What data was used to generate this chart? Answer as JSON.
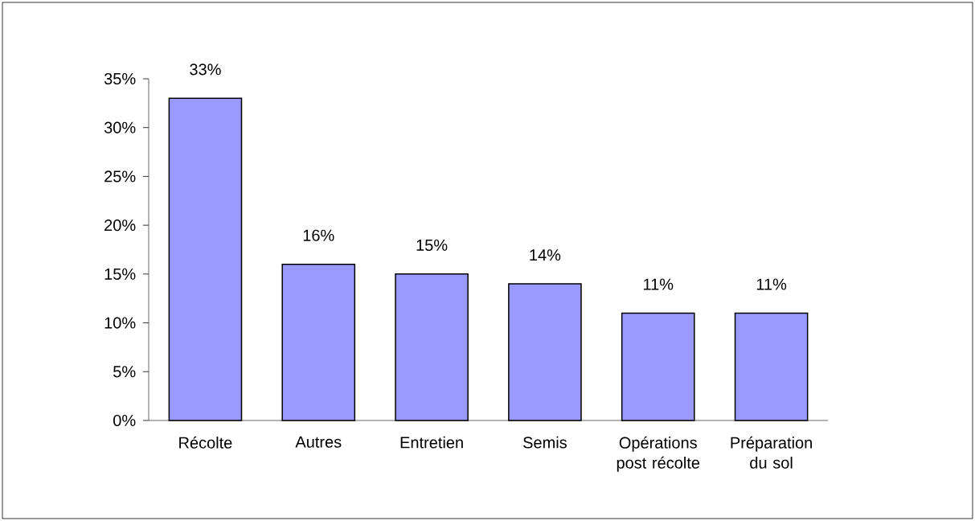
{
  "chart_data": {
    "type": "bar",
    "categories": [
      "Récolte",
      "Autres",
      "Entretien",
      "Semis",
      "Opérations post récolte",
      "Préparation du sol"
    ],
    "values": [
      33,
      16,
      15,
      14,
      11,
      11
    ],
    "color": "#9999ff",
    "value_labels": [
      "33%",
      "16%",
      "15%",
      "14%",
      "11%",
      "11%"
    ],
    "ylim": [
      0,
      35
    ],
    "yticks": [
      {
        "value": 0,
        "label": "0%"
      },
      {
        "value": 5,
        "label": "5%"
      },
      {
        "value": 10,
        "label": "10%"
      },
      {
        "value": 15,
        "label": "15%"
      },
      {
        "value": 20,
        "label": "20%"
      },
      {
        "value": 25,
        "label": "25%"
      },
      {
        "value": 30,
        "label": "30%"
      },
      {
        "value": 35,
        "label": "35%"
      }
    ]
  }
}
